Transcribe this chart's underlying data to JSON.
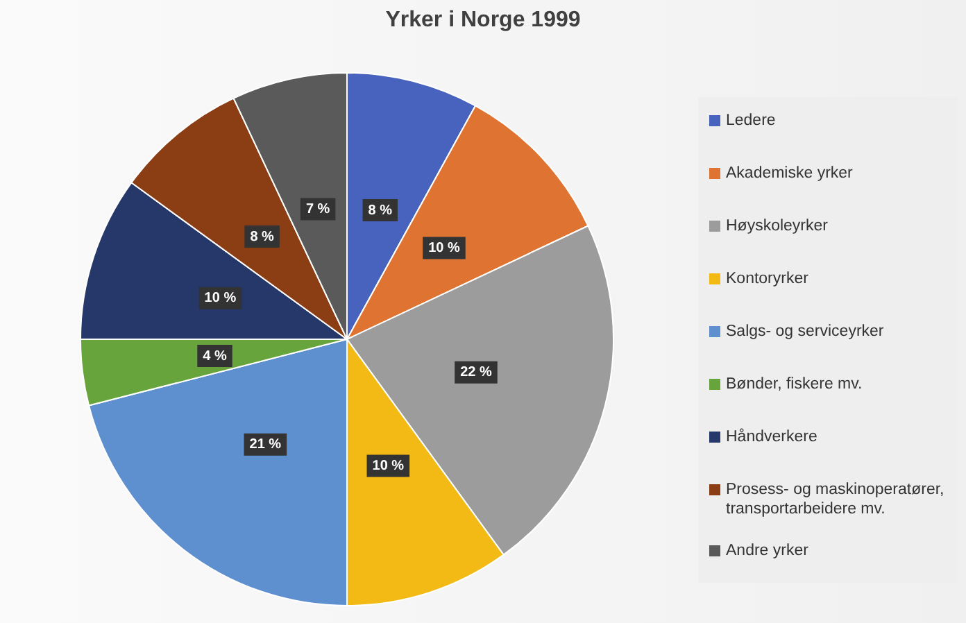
{
  "chart_data": {
    "type": "pie",
    "title": "Yrker i Norge 1999",
    "categories": [
      "Ledere",
      "Akademiske yrker",
      "Høyskoleyrker",
      "Kontoryrker",
      "Salgs- og serviceyrker",
      "Bønder, fiskere mv.",
      "Håndverkere",
      "Prosess- og maskinoperatører, transportarbeidere mv.",
      "Andre yrker"
    ],
    "values": [
      8,
      10,
      22,
      10,
      21,
      4,
      10,
      8,
      7
    ],
    "colors": [
      "#4763bd",
      "#df7432",
      "#9c9c9c",
      "#f3b914",
      "#5e8fcf",
      "#68a43c",
      "#263769",
      "#8b3e14",
      "#5a5a5a"
    ],
    "value_labels": [
      "8 %",
      "10 %",
      "22 %",
      "10 %",
      "21 %",
      "4 %",
      "10 %",
      "8 %",
      "7 %"
    ],
    "legend": "right"
  }
}
